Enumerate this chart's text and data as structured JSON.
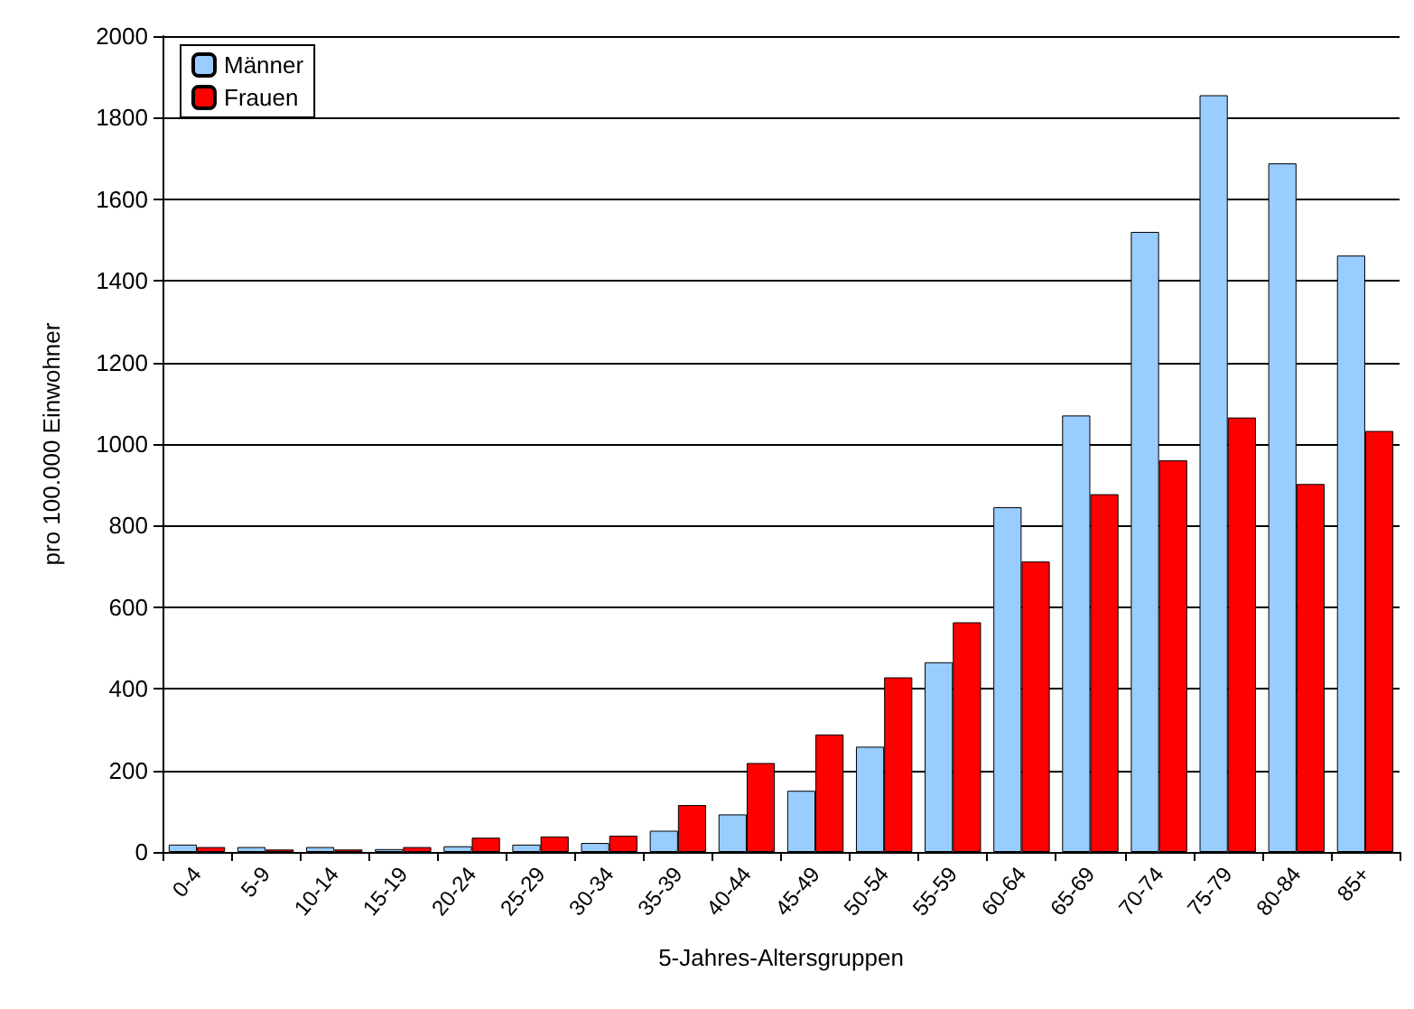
{
  "chart_data": {
    "type": "bar",
    "xlabel": "5-Jahres-Altersgruppen",
    "ylabel": "pro 100.000 Einwohner",
    "categories": [
      "0-4",
      "5-9",
      "10-14",
      "15-19",
      "20-24",
      "25-29",
      "30-34",
      "35-39",
      "40-44",
      "45-49",
      "50-54",
      "55-59",
      "60-64",
      "65-69",
      "70-74",
      "75-79",
      "80-84",
      "85+"
    ],
    "series": [
      {
        "name": "Männer",
        "color": "#99ccff",
        "values": [
          18,
          12,
          12,
          7,
          14,
          18,
          22,
          52,
          92,
          150,
          258,
          465,
          845,
          1070,
          1520,
          1855,
          1688,
          1462
        ]
      },
      {
        "name": "Frauen",
        "color": "#ff0000",
        "values": [
          12,
          6,
          6,
          12,
          35,
          38,
          40,
          115,
          218,
          288,
          428,
          563,
          712,
          877,
          960,
          1065,
          902,
          1032
        ]
      }
    ],
    "ylim": [
      0,
      2000
    ],
    "yticks": [
      0,
      200,
      400,
      600,
      800,
      1000,
      1200,
      1400,
      1600,
      1800,
      2000
    ],
    "grid": "y",
    "legend": "top left"
  }
}
